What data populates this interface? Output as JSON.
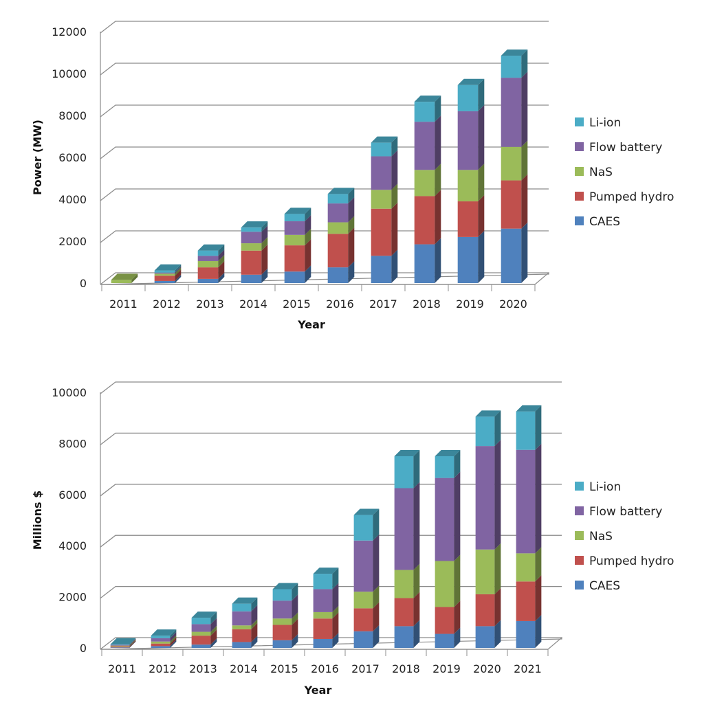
{
  "chart_data": [
    {
      "type": "bar",
      "stacked": true,
      "three_d": true,
      "title": "",
      "xlabel": "Year",
      "ylabel": "Power (MW)",
      "ylim": [
        0,
        12000
      ],
      "yticks": [
        "0",
        "2000",
        "4000",
        "6000",
        "8000",
        "10000",
        "12000"
      ],
      "grid": true,
      "legend_position": "right",
      "categories": [
        "2011",
        "2012",
        "2013",
        "2014",
        "2015",
        "2016",
        "2017",
        "2018",
        "2019",
        "2020"
      ],
      "series": [
        {
          "name": "CAES",
          "color": "#4f81bd",
          "values": [
            0,
            100,
            200,
            400,
            550,
            750,
            1300,
            1850,
            2200,
            2600
          ]
        },
        {
          "name": "Pumped hydro",
          "color": "#c0504d",
          "values": [
            0,
            250,
            550,
            1150,
            1250,
            1600,
            2250,
            2300,
            1700,
            2300
          ]
        },
        {
          "name": "NaS",
          "color": "#9bbb59",
          "values": [
            150,
            100,
            300,
            350,
            500,
            550,
            900,
            1250,
            1500,
            1600
          ]
        },
        {
          "name": "Flow battery",
          "color": "#8064a2",
          "values": [
            0,
            50,
            250,
            550,
            650,
            900,
            1600,
            2300,
            2800,
            3300
          ]
        },
        {
          "name": "Li-ion",
          "color": "#4bacc6",
          "values": [
            0,
            100,
            250,
            200,
            350,
            450,
            650,
            950,
            1250,
            1050
          ]
        }
      ]
    },
    {
      "type": "bar",
      "stacked": true,
      "three_d": true,
      "title": "",
      "xlabel": "Year",
      "ylabel": "Millions $",
      "ylim": [
        0,
        10000
      ],
      "yticks": [
        "0",
        "2000",
        "4000",
        "6000",
        "8000",
        "10000"
      ],
      "grid": true,
      "legend_position": "right",
      "categories": [
        "2011",
        "2012",
        "2013",
        "2014",
        "2015",
        "2016",
        "2017",
        "2018",
        "2019",
        "2020",
        "2021"
      ],
      "series": [
        {
          "name": "CAES",
          "color": "#4f81bd",
          "values": [
            20,
            70,
            130,
            230,
            300,
            350,
            650,
            850,
            550,
            850,
            1050
          ]
        },
        {
          "name": "Pumped hydro",
          "color": "#c0504d",
          "values": [
            40,
            100,
            350,
            500,
            600,
            800,
            900,
            1100,
            1050,
            1250,
            1550
          ]
        },
        {
          "name": "NaS",
          "color": "#9bbb59",
          "values": [
            30,
            80,
            150,
            150,
            250,
            250,
            650,
            1100,
            1800,
            1750,
            1100
          ]
        },
        {
          "name": "Flow battery",
          "color": "#8064a2",
          "values": [
            30,
            130,
            300,
            550,
            700,
            900,
            2000,
            3200,
            3250,
            4050,
            4050
          ]
        },
        {
          "name": "Li-ion",
          "color": "#4bacc6",
          "values": [
            20,
            100,
            250,
            300,
            450,
            600,
            1000,
            1250,
            850,
            1150,
            1500
          ]
        }
      ]
    }
  ]
}
